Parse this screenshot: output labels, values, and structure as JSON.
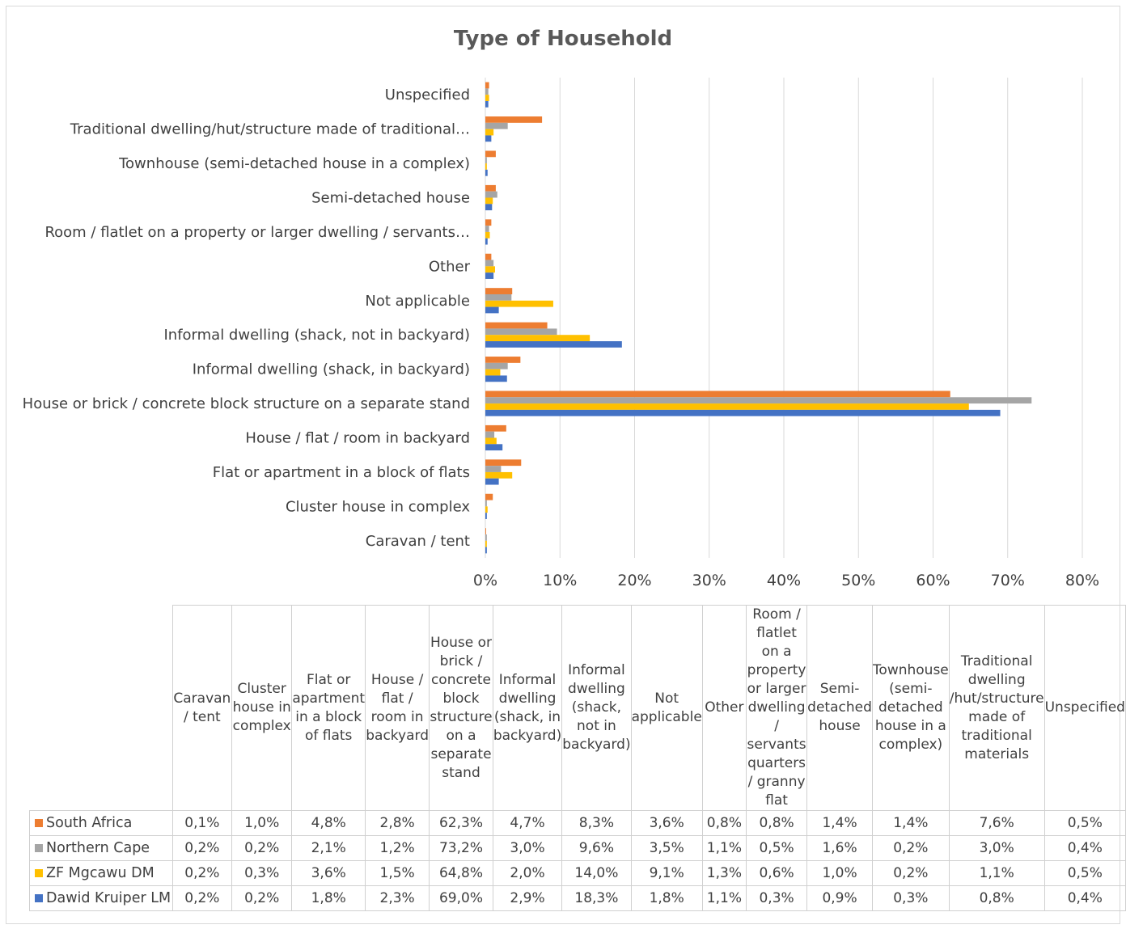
{
  "chart_data": {
    "type": "bar",
    "orientation": "horizontal",
    "title": "Type of Household",
    "categories": [
      "Caravan / tent",
      "Cluster house in complex",
      "Flat or apartment in a block of flats",
      "House / flat / room in backyard",
      "House or brick / concrete block structure on a separate stand",
      "Informal dwelling (shack, in backyard)",
      "Informal dwelling (shack, not in backyard)",
      "Not applicable",
      "Other",
      "Room / flatlet on a property or larger dwelling / servants quarters / granny flat",
      "Semi-detached house",
      "Townhouse (semi-detached house in a complex)",
      "Traditional dwelling/hut/structure made of traditional materials",
      "Unspecified"
    ],
    "axis_labels": [
      "Caravan / tent",
      "Cluster house in complex",
      "Flat or apartment in a block of flats",
      "House / flat / room in backyard",
      "House or brick / concrete block structure on a separate stand",
      "Informal dwelling (shack, in backyard)",
      "Informal dwelling (shack, not in backyard)",
      "Not applicable",
      "Other",
      "Room / flatlet on a property or larger dwelling / servants…",
      "Semi-detached house",
      "Townhouse (semi-detached house in a complex)",
      "Traditional dwelling/hut/structure made of traditional…",
      "Unspecified"
    ],
    "series": [
      {
        "name": "South Africa",
        "color": "#ED7D31",
        "values": [
          0.1,
          1.0,
          4.8,
          2.8,
          62.3,
          4.7,
          8.3,
          3.6,
          0.8,
          0.8,
          1.4,
          1.4,
          7.6,
          0.5
        ],
        "labels": [
          "0,1%",
          "1,0%",
          "4,8%",
          "2,8%",
          "62,3%",
          "4,7%",
          "8,3%",
          "3,6%",
          "0,8%",
          "0,8%",
          "1,4%",
          "1,4%",
          "7,6%",
          "0,5%"
        ]
      },
      {
        "name": "Northern Cape",
        "color": "#A5A5A5",
        "values": [
          0.2,
          0.2,
          2.1,
          1.2,
          73.2,
          3.0,
          9.6,
          3.5,
          1.1,
          0.5,
          1.6,
          0.2,
          3.0,
          0.4
        ],
        "labels": [
          "0,2%",
          "0,2%",
          "2,1%",
          "1,2%",
          "73,2%",
          "3,0%",
          "9,6%",
          "3,5%",
          "1,1%",
          "0,5%",
          "1,6%",
          "0,2%",
          "3,0%",
          "0,4%"
        ]
      },
      {
        "name": "ZF Mgcawu DM",
        "color": "#FFC000",
        "values": [
          0.2,
          0.3,
          3.6,
          1.5,
          64.8,
          2.0,
          14.0,
          9.1,
          1.3,
          0.6,
          1.0,
          0.2,
          1.1,
          0.5
        ],
        "labels": [
          "0,2%",
          "0,3%",
          "3,6%",
          "1,5%",
          "64,8%",
          "2,0%",
          "14,0%",
          "9,1%",
          "1,3%",
          "0,6%",
          "1,0%",
          "0,2%",
          "1,1%",
          "0,5%"
        ]
      },
      {
        "name": "Dawid Kruiper LM",
        "color": "#4472C4",
        "values": [
          0.2,
          0.2,
          1.8,
          2.3,
          69.0,
          2.9,
          18.3,
          1.8,
          1.1,
          0.3,
          0.9,
          0.3,
          0.8,
          0.4
        ],
        "labels": [
          "0,2%",
          "0,2%",
          "1,8%",
          "2,3%",
          "69,0%",
          "2,9%",
          "18,3%",
          "1,8%",
          "1,1%",
          "0,3%",
          "0,9%",
          "0,3%",
          "0,8%",
          "0,4%"
        ]
      }
    ],
    "xlim": [
      0,
      80
    ],
    "xticks": [
      "0%",
      "10%",
      "20%",
      "30%",
      "40%",
      "50%",
      "60%",
      "70%",
      "80%"
    ],
    "grid": true,
    "legend": "data table below chart",
    "table_headers": [
      "Caravan / tent",
      "Cluster house in complex",
      "Flat or apartment in a block of flats",
      "House / flat / room in backyard",
      "House or brick / concrete block structure on a separate stand",
      "Informal dwelling (shack, in backyard)",
      "Informal dwelling (shack, not in backyard)",
      "Not applicable",
      "Other",
      "Room / flatlet on a property or larger dwelling / servants quarters / granny flat",
      "Semi-detached house",
      "Townhouse (semi-detached house in a complex)",
      "Traditional dwelling /hut/structure made of traditional materials",
      "Unspecified"
    ]
  }
}
